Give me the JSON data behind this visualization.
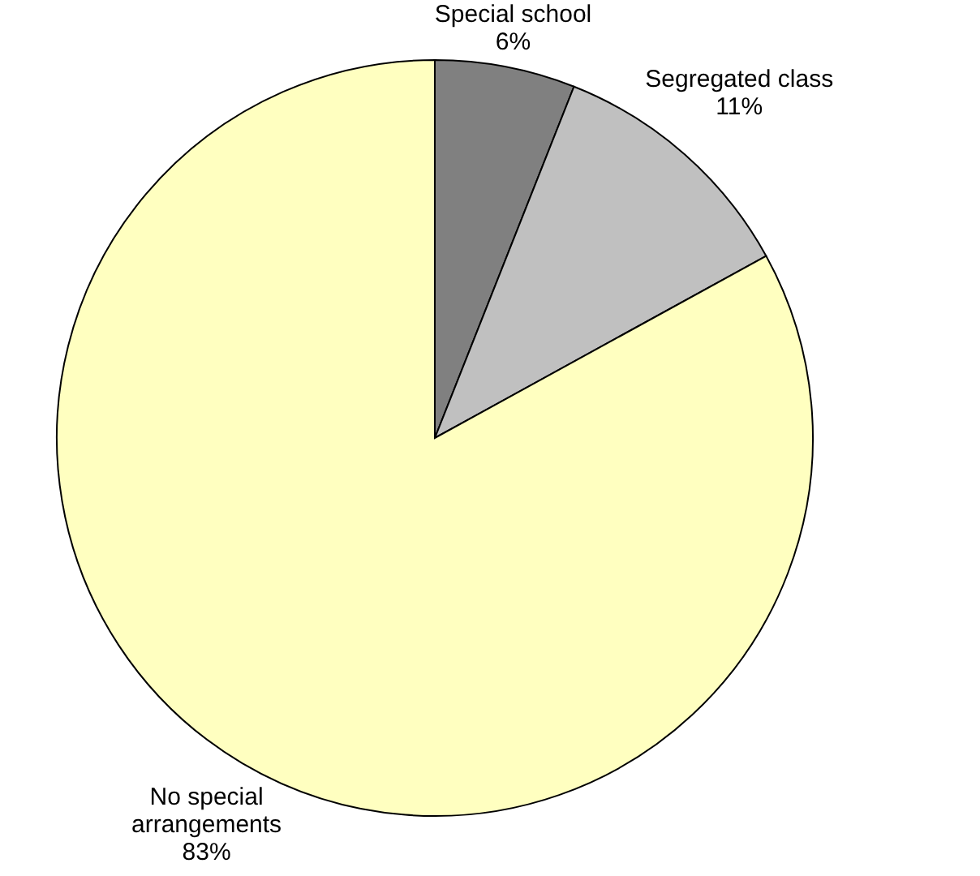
{
  "chart_data": {
    "type": "pie",
    "categories": [
      "Special school",
      "Segregated class",
      "No special arrangements"
    ],
    "values": [
      6,
      11,
      83
    ],
    "value_labels": [
      "6%",
      "11%",
      "83%"
    ],
    "colors": [
      "#808080",
      "#c0c0c0",
      "#ffffc0"
    ]
  }
}
